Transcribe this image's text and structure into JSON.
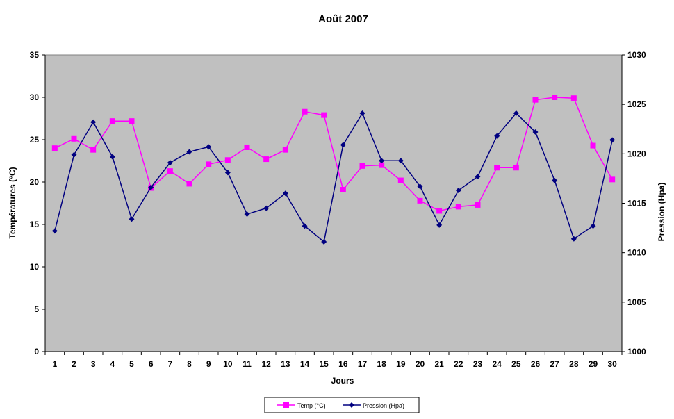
{
  "chart_data": {
    "type": "line",
    "title": "Août 2007",
    "xlabel": "Jours",
    "ylabel": "Températures (°C)",
    "y2label": "Pression (Hpa)",
    "categories": [
      "1",
      "2",
      "3",
      "4",
      "5",
      "6",
      "7",
      "8",
      "9",
      "10",
      "11",
      "12",
      "13",
      "14",
      "15",
      "16",
      "17",
      "18",
      "19",
      "20",
      "21",
      "22",
      "23",
      "24",
      "25",
      "26",
      "27",
      "28",
      "29",
      "30"
    ],
    "ylim": [
      0,
      35
    ],
    "yticks": [
      "0",
      "5",
      "10",
      "15",
      "20",
      "25",
      "30",
      "35"
    ],
    "y2lim": [
      1000,
      1030
    ],
    "y2ticks": [
      "1000",
      "1005",
      "1010",
      "1015",
      "1020",
      "1025",
      "1030"
    ],
    "grid": false,
    "legend_position": "bottom",
    "plot_background": "#C0C0C0",
    "series": [
      {
        "name": "Temp (°C)",
        "axis": "left",
        "color": "#FF00FF",
        "marker": "square",
        "values": [
          24.0,
          25.1,
          23.8,
          27.2,
          27.2,
          19.3,
          21.3,
          19.8,
          22.1,
          22.6,
          24.1,
          22.7,
          23.8,
          28.3,
          27.9,
          19.1,
          21.9,
          22.0,
          20.2,
          17.8,
          16.6,
          17.1,
          17.3,
          21.7,
          21.7,
          29.7,
          30.0,
          29.9,
          24.3,
          20.3
        ]
      },
      {
        "name": "Pression (Hpa)",
        "axis": "right",
        "color": "#000080",
        "marker": "diamond",
        "values": [
          1012.2,
          1019.9,
          1023.2,
          1019.7,
          1013.4,
          1016.6,
          1019.1,
          1020.2,
          1020.7,
          1018.1,
          1013.9,
          1014.5,
          1016.0,
          1012.7,
          1011.1,
          1020.9,
          1024.1,
          1019.3,
          1019.3,
          1016.7,
          1012.8,
          1016.3,
          1017.7,
          1021.8,
          1024.1,
          1022.2,
          1017.3,
          1011.4,
          1012.7,
          1021.4
        ]
      }
    ]
  }
}
